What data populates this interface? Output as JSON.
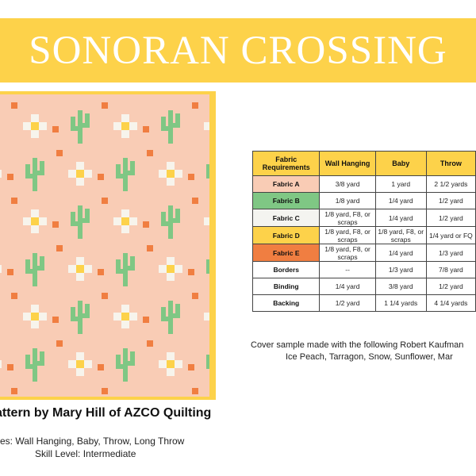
{
  "title": "SONORAN CROSSING",
  "pattern_by": "attern by Mary Hill of AZCO Quilting",
  "sizes": "es: Wall Hanging, Baby, Throw, Long Throw",
  "skill_level": "Skill Level: Intermediate",
  "colors": {
    "banner": "#fdd24a",
    "quilt_background": "#f9ccb5",
    "cactus": "#7fc784",
    "flower_petal": "#f7f4ec",
    "flower_center": "#fdd24a",
    "accent_square": "#f07e41",
    "fabric_a": "#f9ccb5",
    "fabric_b": "#7fc784",
    "fabric_c": "#f4f4f0",
    "fabric_d": "#fdd24a",
    "fabric_e": "#f07e41"
  },
  "table": {
    "headers": [
      "Fabric Requirements",
      "Wall Hanging",
      "Baby",
      "Throw"
    ],
    "rows": [
      {
        "label": "Fabric A",
        "color": "#f9ccb5",
        "wall": "3/8 yard",
        "baby": "1 yard",
        "throw": "2 1/2 yards"
      },
      {
        "label": "Fabric B",
        "color": "#7fc784",
        "wall": "1/8 yard",
        "baby": "1/4 yard",
        "throw": "1/2 yard"
      },
      {
        "label": "Fabric C",
        "color": "#f4f4f0",
        "wall": "1/8 yard, F8, or scraps",
        "baby": "1/4 yard",
        "throw": "1/2 yard"
      },
      {
        "label": "Fabric D",
        "color": "#fdd24a",
        "wall": "1/8 yard, F8, or scraps",
        "baby": "1/8 yard, F8, or scraps",
        "throw": "1/4 yard or FQ"
      },
      {
        "label": "Fabric E",
        "color": "#f07e41",
        "wall": "1/8 yard, F8, or scraps",
        "baby": "1/4 yard",
        "throw": "1/3 yard"
      },
      {
        "label": "Borders",
        "color": "#ffffff",
        "wall": "--",
        "baby": "1/3 yard",
        "throw": "7/8 yard"
      },
      {
        "label": "Binding",
        "color": "#ffffff",
        "wall": "1/4 yard",
        "baby": "3/8 yard",
        "throw": "1/2 yard"
      },
      {
        "label": "Backing",
        "color": "#ffffff",
        "wall": "1/2 yard",
        "baby": "1 1/4 yards",
        "throw": "4 1/4 yards"
      }
    ]
  },
  "cover_note_line1": "Cover sample made with the following Robert Kaufman",
  "cover_note_line2": "Ice Peach, Tarragon, Snow, Sunflower, Mar"
}
